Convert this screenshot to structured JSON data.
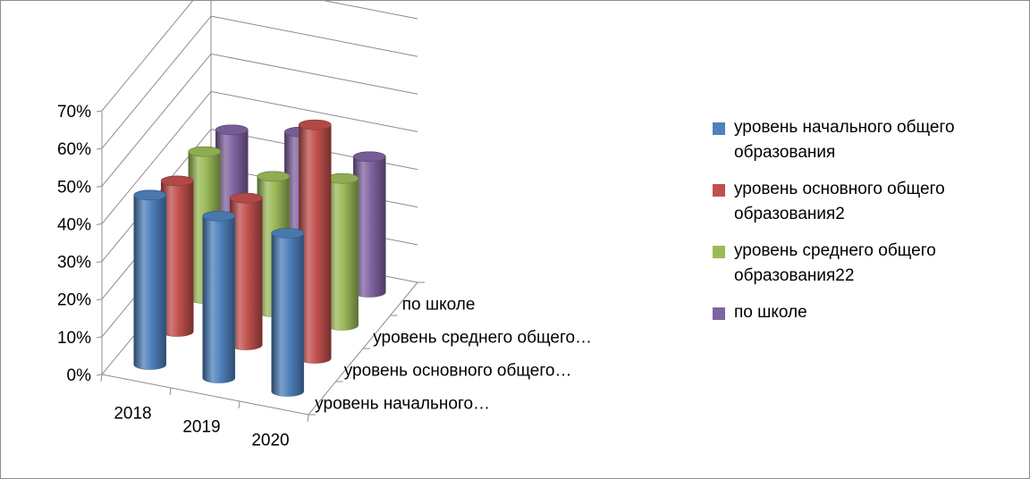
{
  "chart_data": {
    "type": "bar",
    "subtype": "3d-cylinder",
    "title": "",
    "xlabel": "",
    "ylabel": "",
    "categories": [
      "2018",
      "2019",
      "2020"
    ],
    "depth_labels": [
      "по школе",
      "уровень среднего общего…",
      "уровень основного общего…",
      "уровень начального…"
    ],
    "ylim": [
      0,
      0.7
    ],
    "yticks": [
      "0%",
      "10%",
      "20%",
      "30%",
      "40%",
      "50%",
      "60%",
      "70%"
    ],
    "grid": true,
    "legend_position": "right",
    "series": [
      {
        "name": "уровень начального общего образования",
        "color": "#4f81bd",
        "values": [
          0.45,
          0.43,
          0.42
        ]
      },
      {
        "name": "уровень основного общего образования2",
        "color": "#c0504d",
        "values": [
          0.4,
          0.39,
          0.62
        ]
      },
      {
        "name": "уровень среднего общего образования22",
        "color": "#9bbb59",
        "values": [
          0.39,
          0.36,
          0.39
        ]
      },
      {
        "name": "по школе",
        "color": "#8064a2",
        "values": [
          0.36,
          0.39,
          0.36
        ]
      }
    ]
  }
}
